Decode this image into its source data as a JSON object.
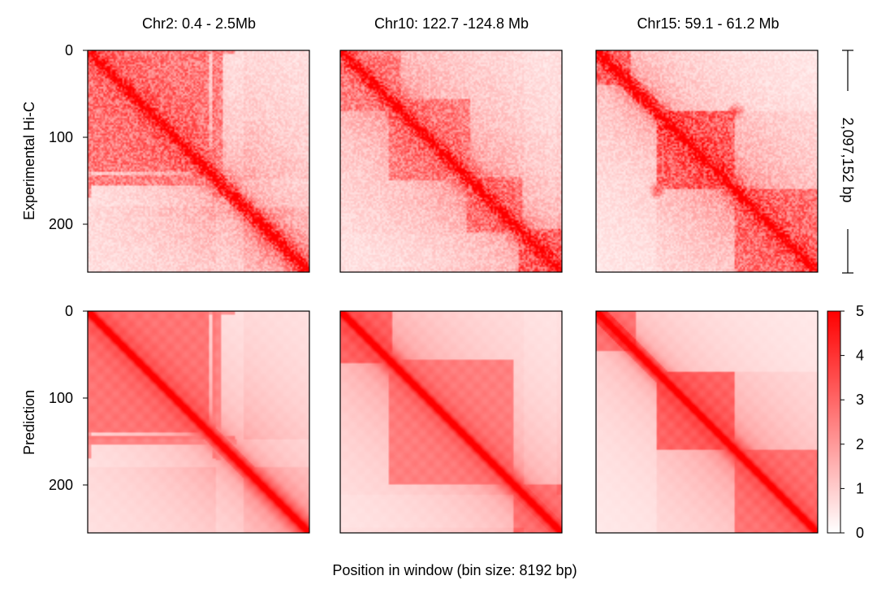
{
  "chart_data": {
    "type": "heatmap",
    "x_axis_label": "Position in window (bin size: 8192 bp)",
    "row_labels": [
      "Experimental Hi-C",
      "Prediction"
    ],
    "column_titles": [
      "Chr2: 0.4 - 2.5Mb",
      "Chr10: 122.7 -124.8 Mb",
      "Chr15: 59.1 - 61.2 Mb"
    ],
    "window_size_label": "2,097,152 bp",
    "bins_per_window": 256,
    "axis": {
      "min": 0,
      "max": 256,
      "ticks": [
        0,
        100,
        200
      ]
    },
    "colorbar": {
      "min": 0,
      "max": 5,
      "ticks": [
        0,
        1,
        2,
        3,
        4,
        5
      ],
      "low_color": "#ffffff",
      "high_color": "#ff0000"
    },
    "panels": [
      {
        "row": "Experimental Hi-C",
        "column": "Chr2: 0.4 - 2.5Mb",
        "blocks": [
          [
            0,
            140,
            2.6
          ]
        ],
        "hotspots": [
          [
            160,
            160,
            4.2
          ]
        ],
        "stripes": [
          [
            145,
            170,
            2.6
          ],
          [
            150,
            170,
            2.4
          ],
          [
            153,
            172,
            2.5
          ],
          [
            0,
            170,
            2.1
          ]
        ],
        "light_bands": [
          [
            148,
            180,
            0.35
          ]
        ]
      },
      {
        "row": "Experimental Hi-C",
        "column": "Chr10: 122.7 -124.8 Mb",
        "blocks": [
          [
            0,
            70,
            2.3
          ],
          [
            55,
            150,
            2.4
          ],
          [
            145,
            210,
            2.5
          ],
          [
            205,
            256,
            3.2
          ]
        ],
        "hotspots": [
          [
            210,
            256,
            2.8
          ]
        ],
        "stripes": [
          [],
          [],
          [],
          []
        ],
        "light_bands": [
          [
            212,
            250,
            0.2
          ]
        ]
      },
      {
        "row": "Experimental Hi-C",
        "column": "Chr15: 59.1 - 61.2 Mb",
        "blocks": [
          [
            0,
            40,
            3.5
          ],
          [
            70,
            160,
            3.0
          ],
          [
            160,
            256,
            2.7
          ]
        ],
        "hotspots": [
          [
            160,
            160,
            4.0
          ],
          [
            70,
            160,
            2.9
          ]
        ],
        "stripes": [
          [],
          [],
          [],
          []
        ],
        "light_bands": [
          [
            0,
            70,
            0.4
          ]
        ]
      },
      {
        "row": "Prediction",
        "column": "Chr2: 0.4 - 2.5Mb",
        "blocks": [
          [
            0,
            140,
            2.8
          ]
        ],
        "hotspots": [
          [
            160,
            160,
            4.0
          ]
        ],
        "stripes": [
          [
            145,
            170,
            2.7
          ],
          [
            150,
            172,
            2.5
          ],
          [
            0,
            170,
            2.2
          ]
        ],
        "light_bands": [
          [
            148,
            180,
            0.35
          ]
        ]
      },
      {
        "row": "Prediction",
        "column": "Chr10: 122.7 -124.8 Mb",
        "blocks": [
          [
            0,
            60,
            3.0
          ],
          [
            55,
            200,
            2.6
          ],
          [
            200,
            256,
            3.0
          ]
        ],
        "hotspots": [
          [
            215,
            256,
            2.9
          ]
        ],
        "stripes": [
          [],
          [],
          []
        ],
        "light_bands": [
          [
            212,
            250,
            0.2
          ]
        ]
      },
      {
        "row": "Prediction",
        "column": "Chr15: 59.1 - 61.2 Mb",
        "blocks": [
          [
            0,
            45,
            3.6
          ],
          [
            70,
            160,
            3.1
          ],
          [
            160,
            256,
            2.8
          ]
        ],
        "hotspots": [
          [
            160,
            160,
            3.9
          ]
        ],
        "stripes": [
          [],
          [],
          []
        ],
        "light_bands": [
          [
            0,
            70,
            0.45
          ]
        ]
      }
    ]
  }
}
